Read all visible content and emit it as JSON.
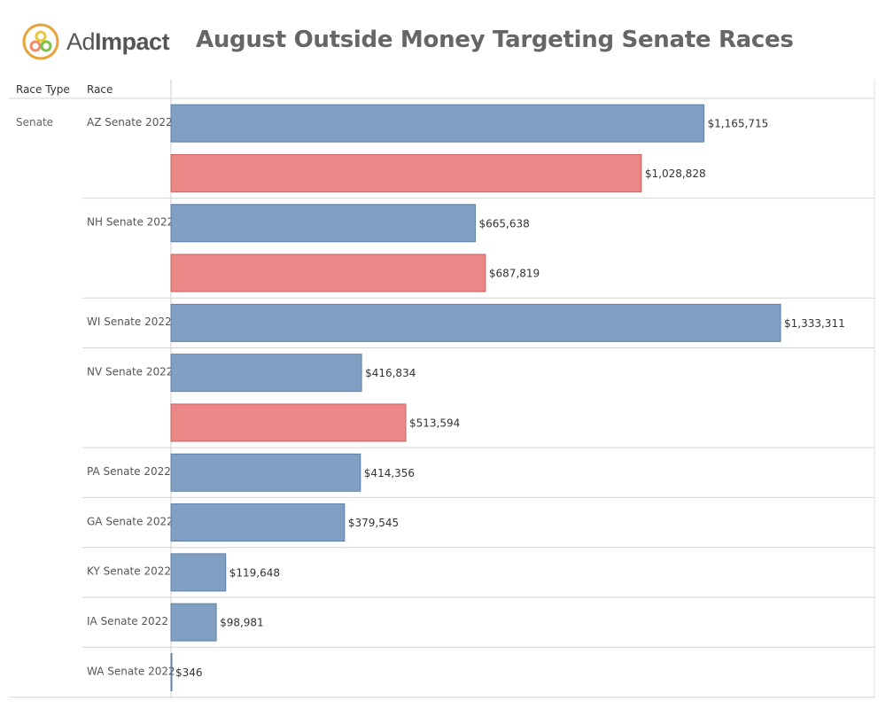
{
  "brand": {
    "logo_regular": "Ad",
    "logo_bold": "Impact",
    "colors": [
      "#e8a23a",
      "#f28a6b",
      "#7ac143",
      "#e8c73a"
    ]
  },
  "title": "August Outside Money Targeting Senate Races",
  "headers": {
    "race_type": "Race Type",
    "race": "Race"
  },
  "chart_data": {
    "type": "bar",
    "orientation": "horizontal",
    "title": "August Outside Money Targeting Senate Races",
    "row_dimensions": [
      "Race Type",
      "Race"
    ],
    "race_type": "Senate",
    "colors": {
      "blue": "#7f9fc3",
      "red": "#ec8787"
    },
    "races": [
      {
        "race": "AZ Senate 2022",
        "bars": [
          {
            "value": 1165715,
            "label": "$1,165,715",
            "color": "blue"
          },
          {
            "value": 1028828,
            "label": "$1,028,828",
            "color": "red"
          }
        ]
      },
      {
        "race": "NH Senate 2022",
        "bars": [
          {
            "value": 665638,
            "label": "$665,638",
            "color": "blue"
          },
          {
            "value": 687819,
            "label": "$687,819",
            "color": "red"
          }
        ]
      },
      {
        "race": "WI Senate 2022",
        "bars": [
          {
            "value": 1333311,
            "label": "$1,333,311",
            "color": "blue"
          }
        ]
      },
      {
        "race": "NV Senate 2022",
        "bars": [
          {
            "value": 416834,
            "label": "$416,834",
            "color": "blue"
          },
          {
            "value": 513594,
            "label": "$513,594",
            "color": "red"
          }
        ]
      },
      {
        "race": "PA Senate 2022",
        "bars": [
          {
            "value": 414356,
            "label": "$414,356",
            "color": "blue"
          }
        ]
      },
      {
        "race": "GA Senate 2022",
        "bars": [
          {
            "value": 379545,
            "label": "$379,545",
            "color": "blue"
          }
        ]
      },
      {
        "race": "KY Senate 2022",
        "bars": [
          {
            "value": 119648,
            "label": "$119,648",
            "color": "blue"
          }
        ]
      },
      {
        "race": "IA Senate 2022",
        "bars": [
          {
            "value": 98981,
            "label": "$98,981",
            "color": "blue"
          }
        ]
      },
      {
        "race": "WA Senate 2022",
        "bars": [
          {
            "value": 346,
            "label": "$346",
            "color": "blue"
          }
        ]
      }
    ]
  }
}
